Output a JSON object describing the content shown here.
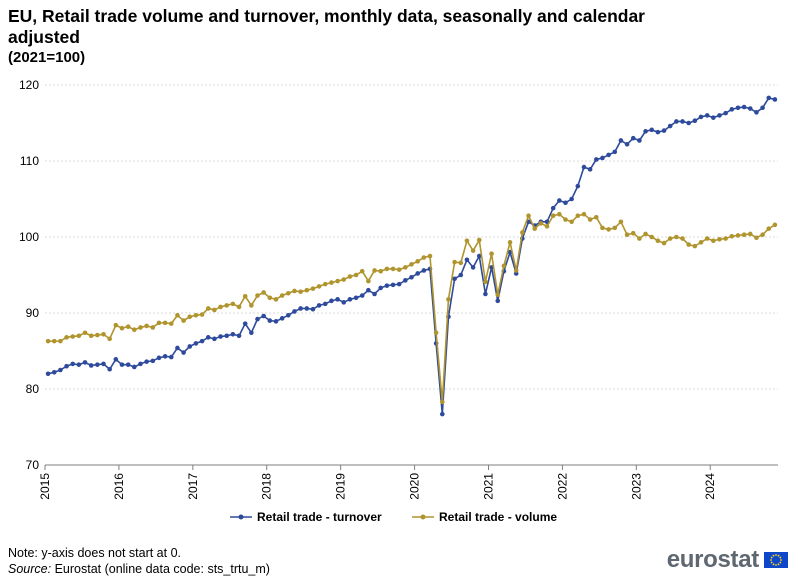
{
  "header": {
    "title": "EU, Retail trade volume and turnover, monthly data, seasonally and calendar adjusted",
    "subtitle": "(2021=100)"
  },
  "footer": {
    "note": "Note: y-axis does not start at 0.",
    "source_label": "Source:",
    "source_text": " Eurostat (online data code: sts_trtu_m)",
    "logo_text": "eurostat"
  },
  "colors": {
    "turnover": "#2E4A9C",
    "volume": "#B0942E",
    "grid": "#D9D9D9",
    "axis": "#7F7F7F",
    "eu_flag": "#0E47CB",
    "eu_star": "#FFDD00"
  },
  "chart_data": {
    "type": "line",
    "title": "EU, Retail trade volume and turnover, monthly data, seasonally and calendar adjusted",
    "subtitle": "(2021=100)",
    "x_start": "2015-01",
    "x_ticks": [
      "2015",
      "2016",
      "2017",
      "2018",
      "2019",
      "2020",
      "2021",
      "2022",
      "2023",
      "2024"
    ],
    "y_ticks": [
      70,
      80,
      90,
      100,
      110,
      120
    ],
    "ylim": [
      70,
      120
    ],
    "grid": true,
    "legend_position": "bottom",
    "series": [
      {
        "name": "Retail trade - turnover",
        "color": "#2E4A9C",
        "values": [
          82.0,
          82.2,
          82.5,
          83.0,
          83.3,
          83.2,
          83.5,
          83.1,
          83.2,
          83.3,
          82.6,
          83.9,
          83.2,
          83.2,
          82.9,
          83.3,
          83.6,
          83.7,
          84.1,
          84.3,
          84.2,
          85.4,
          84.8,
          85.6,
          86.0,
          86.3,
          86.8,
          86.6,
          86.9,
          87.0,
          87.2,
          87.0,
          88.6,
          87.4,
          89.2,
          89.6,
          89.0,
          88.9,
          89.3,
          89.7,
          90.2,
          90.6,
          90.6,
          90.5,
          91.0,
          91.2,
          91.6,
          91.8,
          91.4,
          91.8,
          92.0,
          92.3,
          93.0,
          92.5,
          93.3,
          93.6,
          93.7,
          93.8,
          94.3,
          94.7,
          95.2,
          95.6,
          95.8,
          86.0,
          76.7,
          89.5,
          94.5,
          95.0,
          97.0,
          96.0,
          97.5,
          92.5,
          96.0,
          91.6,
          95.5,
          98.0,
          95.2,
          99.8,
          102.0,
          101.5,
          102.0,
          102.0,
          103.8,
          104.8,
          104.5,
          105.0,
          106.7,
          109.2,
          108.9,
          110.2,
          110.4,
          110.8,
          111.2,
          112.7,
          112.2,
          113.0,
          112.7,
          113.9,
          114.1,
          113.8,
          114.0,
          114.6,
          115.2,
          115.2,
          115.0,
          115.3,
          115.8,
          116.0,
          115.7,
          116.0,
          116.3,
          116.8,
          117.0,
          117.1,
          116.9,
          116.4,
          117.0,
          118.3,
          118.1
        ]
      },
      {
        "name": "Retail trade - volume",
        "color": "#B0942E",
        "values": [
          86.3,
          86.3,
          86.3,
          86.8,
          86.9,
          87.0,
          87.4,
          87.0,
          87.1,
          87.2,
          86.6,
          88.4,
          88.0,
          88.2,
          87.8,
          88.1,
          88.3,
          88.1,
          88.7,
          88.7,
          88.6,
          89.7,
          89.0,
          89.5,
          89.7,
          89.8,
          90.6,
          90.4,
          90.8,
          91.0,
          91.2,
          90.8,
          92.2,
          91.0,
          92.3,
          92.7,
          92.0,
          91.8,
          92.3,
          92.6,
          92.9,
          92.8,
          93.0,
          93.2,
          93.5,
          93.8,
          94.0,
          94.2,
          94.4,
          94.8,
          95.0,
          95.5,
          94.2,
          95.6,
          95.5,
          95.8,
          95.8,
          95.7,
          96.0,
          96.4,
          96.8,
          97.3,
          97.5,
          87.4,
          78.3,
          91.8,
          96.7,
          96.6,
          99.5,
          98.2,
          99.6,
          94.1,
          97.8,
          92.4,
          96.2,
          99.3,
          95.6,
          100.6,
          102.8,
          101.1,
          101.8,
          101.4,
          102.8,
          103.0,
          102.3,
          102.0,
          102.8,
          103.0,
          102.3,
          102.6,
          101.2,
          101.0,
          101.2,
          102.0,
          100.3,
          100.5,
          99.8,
          100.4,
          100.0,
          99.5,
          99.2,
          99.8,
          100.0,
          99.8,
          99.0,
          98.8,
          99.3,
          99.8,
          99.5,
          99.7,
          99.8,
          100.1,
          100.2,
          100.3,
          100.4,
          99.9,
          100.3,
          101.1,
          101.6
        ]
      }
    ]
  }
}
